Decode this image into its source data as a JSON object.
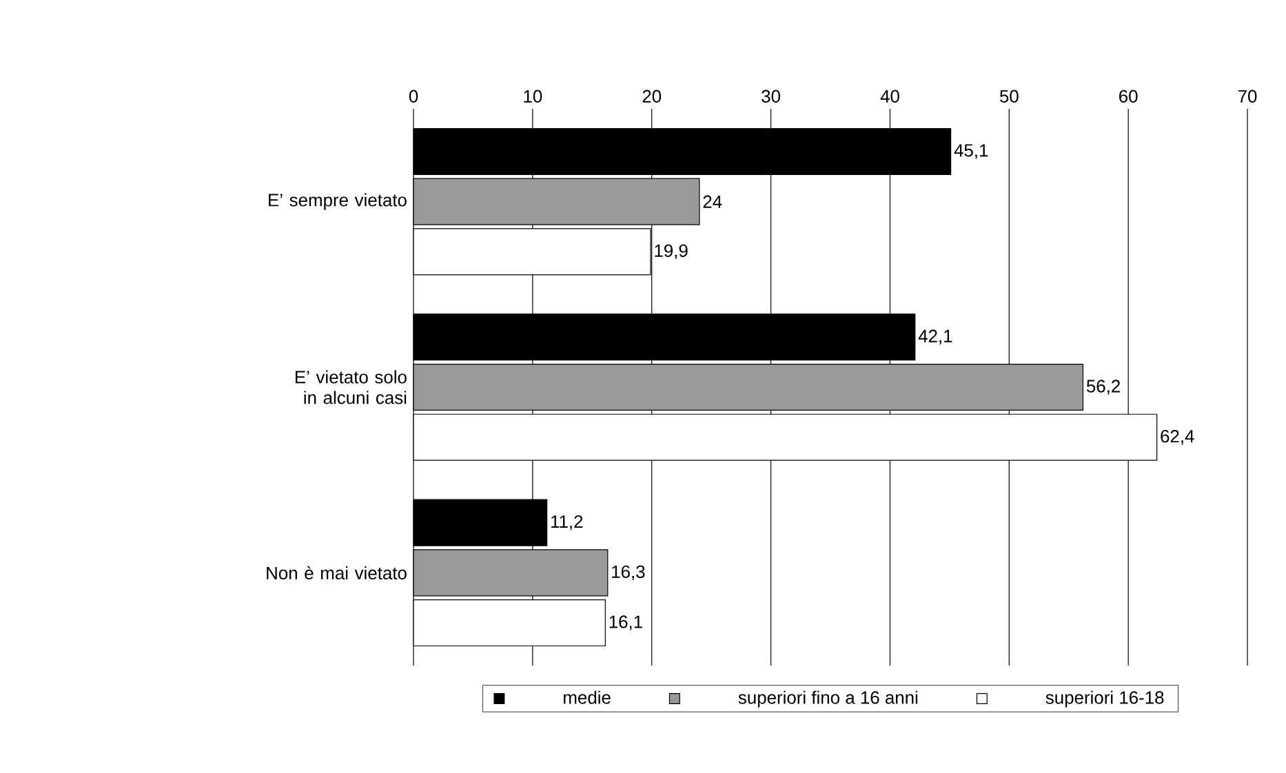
{
  "chart_data": {
    "type": "bar",
    "orientation": "horizontal",
    "categories": [
      "E’ sempre vietato",
      "E’ vietato solo in alcuni casi",
      "Non è mai vietato"
    ],
    "series": [
      {
        "name": "medie",
        "color": "#000000",
        "values": [
          45.1,
          42.1,
          11.2
        ],
        "value_labels": [
          "45,1",
          "42,1",
          "11,2"
        ]
      },
      {
        "name": "superiori fino a 16 anni",
        "color": "#9a9a9a",
        "values": [
          24,
          56.2,
          16.3
        ],
        "value_labels": [
          "24",
          "56,2",
          "16,3"
        ]
      },
      {
        "name": "superiori 16-18",
        "color": "#ffffff",
        "values": [
          19.9,
          62.4,
          16.1
        ],
        "value_labels": [
          "19,9",
          "62,4",
          "16,1"
        ]
      }
    ],
    "xlim": [
      0,
      70
    ],
    "xticks": [
      0,
      10,
      20,
      30,
      40,
      50,
      60,
      70
    ],
    "grid": "x",
    "legend": "bottom"
  }
}
